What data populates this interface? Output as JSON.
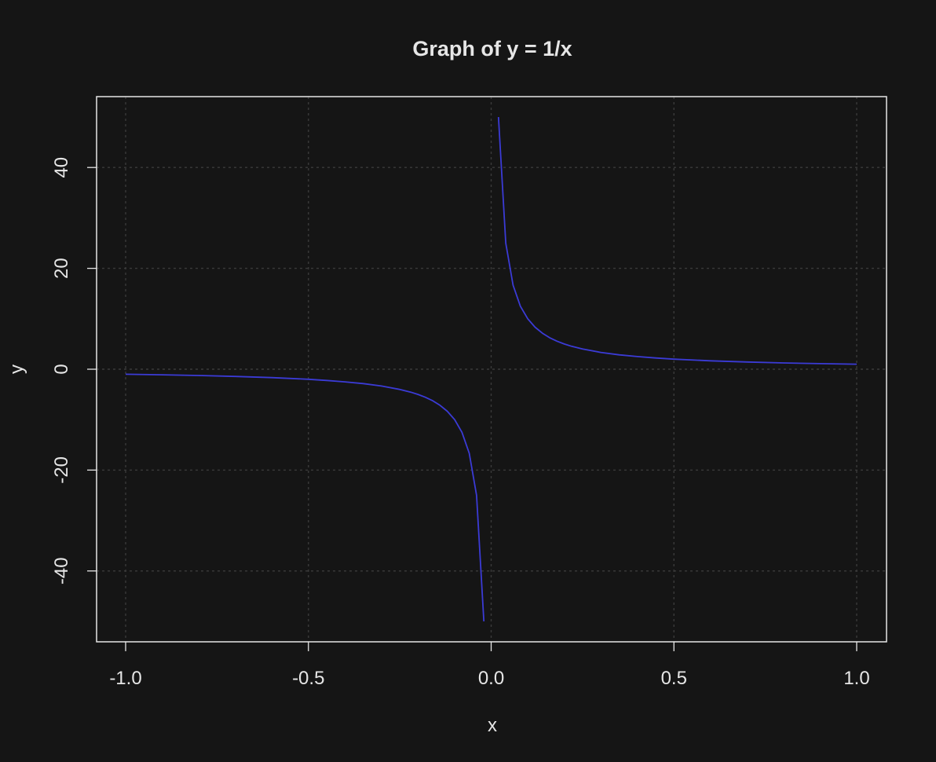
{
  "chart_data": {
    "type": "line",
    "title": "Graph of y = 1/x",
    "xlabel": "x",
    "ylabel": "y",
    "xlim": [
      -1.0,
      1.0
    ],
    "ylim": [
      -50,
      50
    ],
    "xticks": [
      -1.0,
      -0.5,
      0.0,
      0.5,
      1.0
    ],
    "xtick_labels": [
      "-1.0",
      "-0.5",
      "0.0",
      "0.5",
      "1.0"
    ],
    "yticks": [
      -40,
      -20,
      0,
      20,
      40
    ],
    "ytick_labels": [
      "-40",
      "-20",
      "0",
      "20",
      "40"
    ],
    "grid": true,
    "line_color": "#3b3bd6",
    "series": [
      {
        "x": [
          -1.0,
          -0.9,
          -0.8,
          -0.7,
          -0.6,
          -0.5,
          -0.45,
          -0.4,
          -0.35,
          -0.3,
          -0.25,
          -0.22,
          -0.2,
          -0.18,
          -0.16,
          -0.14,
          -0.12,
          -0.1,
          -0.08,
          -0.06,
          -0.04,
          -0.02
        ],
        "y": [
          -1.0,
          -1.111,
          -1.25,
          -1.429,
          -1.667,
          -2.0,
          -2.222,
          -2.5,
          -2.857,
          -3.333,
          -4.0,
          -4.545,
          -5.0,
          -5.556,
          -6.25,
          -7.143,
          -8.333,
          -10.0,
          -12.5,
          -16.667,
          -25.0,
          -50.0
        ]
      },
      {
        "x": [
          0.02,
          0.04,
          0.06,
          0.08,
          0.1,
          0.12,
          0.14,
          0.16,
          0.18,
          0.2,
          0.22,
          0.25,
          0.3,
          0.35,
          0.4,
          0.45,
          0.5,
          0.6,
          0.7,
          0.8,
          0.9,
          1.0
        ],
        "y": [
          50.0,
          25.0,
          16.667,
          12.5,
          10.0,
          8.333,
          7.143,
          6.25,
          5.556,
          5.0,
          4.545,
          4.0,
          3.333,
          2.857,
          2.5,
          2.222,
          2.0,
          1.667,
          1.429,
          1.25,
          1.111,
          1.0
        ]
      }
    ]
  }
}
